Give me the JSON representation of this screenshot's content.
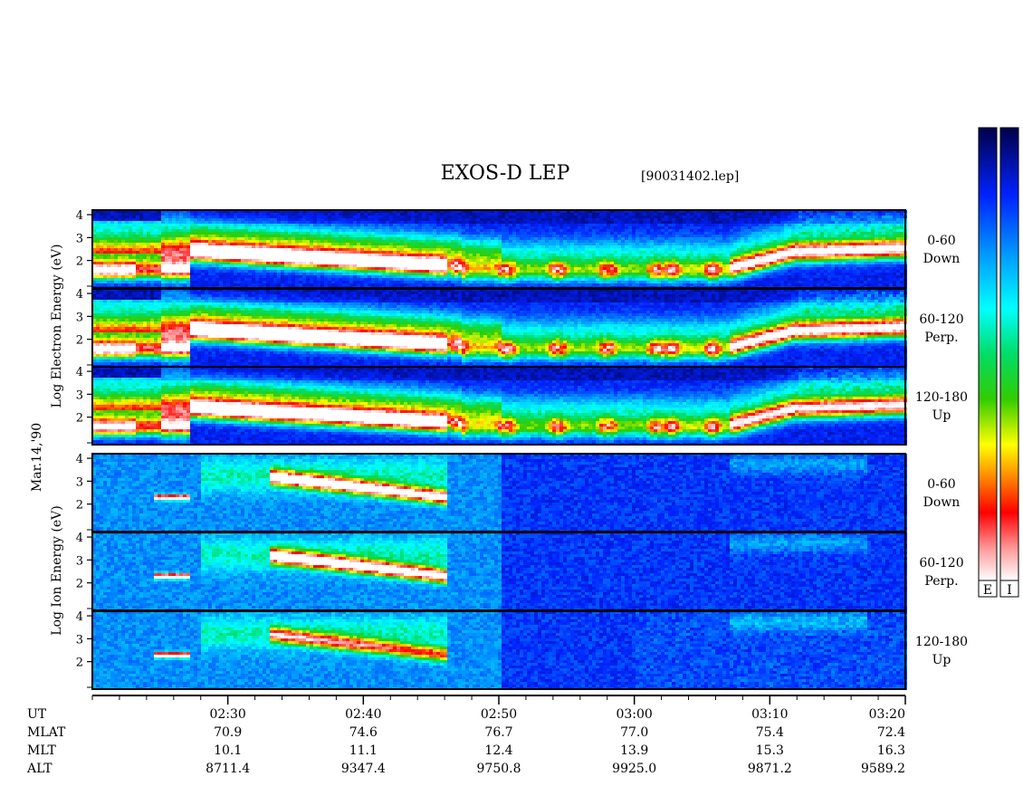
{
  "header": {
    "title": "EXOS-D LEP",
    "file": "[90031402.lep]"
  },
  "date_label": "Mar.14,'90",
  "groups": [
    {
      "id": "electron",
      "axis_label": [
        "Log",
        "Electron",
        "Energy",
        "(eV)"
      ]
    },
    {
      "id": "ion",
      "axis_label": [
        "Log",
        "Ion",
        "Energy",
        "(eV)"
      ]
    }
  ],
  "colorbars": [
    {
      "label": "E"
    },
    {
      "label": "I"
    }
  ],
  "bottom_rows": [
    {
      "label": "UT",
      "values": [
        "02:30",
        "02:40",
        "02:50",
        "03:00",
        "03:10",
        "03:20"
      ]
    },
    {
      "label": "MLAT",
      "values": [
        "70.9",
        "74.6",
        "76.7",
        "77.0",
        "75.4",
        "72.4"
      ]
    },
    {
      "label": "MLT",
      "values": [
        "10.1",
        "11.1",
        "12.4",
        "13.9",
        "15.3",
        "16.3"
      ]
    },
    {
      "label": "ALT",
      "values": [
        "8711.4",
        "9347.4",
        "9750.8",
        "9925.0",
        "9871.2",
        "9589.2"
      ]
    }
  ],
  "chart_data": {
    "type": "heatmap",
    "x_axis": "UT",
    "x_range": [
      "02:20",
      "03:20"
    ],
    "x_major_ticks": [
      "02:30",
      "02:40",
      "02:50",
      "03:00",
      "03:10",
      "03:20"
    ],
    "y_axis": "Log Energy (eV)",
    "y_ticks": [
      2,
      3,
      4
    ],
    "colormap": "rainbow (dark blue low to white high)",
    "panels": [
      {
        "species": "Electron",
        "pitch_angle": "0-60",
        "direction": "Down"
      },
      {
        "species": "Electron",
        "pitch_angle": "60-120",
        "direction": "Perp."
      },
      {
        "species": "Electron",
        "pitch_angle": "120-180",
        "direction": "Up"
      },
      {
        "species": "Ion",
        "pitch_angle": "0-60",
        "direction": "Down"
      },
      {
        "species": "Ion",
        "pitch_angle": "60-120",
        "direction": "Perp."
      },
      {
        "species": "Ion",
        "pitch_angle": "120-180",
        "direction": "Up"
      }
    ]
  }
}
